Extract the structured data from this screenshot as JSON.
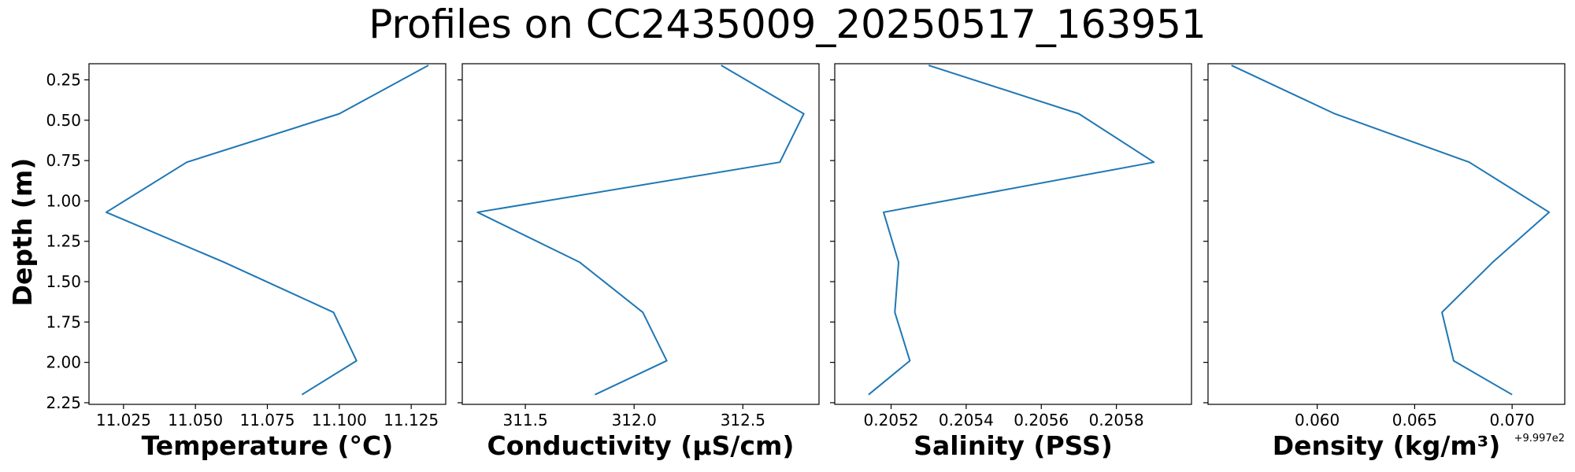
{
  "figure": {
    "title": "Profiles on CC2435009_20250517_163951",
    "ylabel": "Depth (m)"
  },
  "colors": {
    "line": "#1f77b4",
    "axis": "#000000",
    "background": "#ffffff"
  },
  "chart_data": [
    {
      "type": "line",
      "title": "",
      "xlabel": "Temperature (°C)",
      "ylabel": "Depth (m)",
      "y_inverted": true,
      "xlim": [
        11.013,
        11.137
      ],
      "ylim": [
        2.26,
        0.15
      ],
      "xticks": [
        "11.025",
        "11.050",
        "11.075",
        "11.100",
        "11.125"
      ],
      "xtick_values": [
        11.025,
        11.05,
        11.075,
        11.1,
        11.125
      ],
      "yticks": [
        "0.25",
        "0.50",
        "0.75",
        "1.00",
        "1.25",
        "1.50",
        "1.75",
        "2.00",
        "2.25"
      ],
      "ytick_values": [
        0.25,
        0.5,
        0.75,
        1.0,
        1.25,
        1.5,
        1.75,
        2.0,
        2.25
      ],
      "series": [
        {
          "x": [
            11.131,
            11.1,
            11.047,
            11.019,
            11.06,
            11.098,
            11.106,
            11.087
          ],
          "y": [
            0.16,
            0.46,
            0.76,
            1.07,
            1.38,
            1.69,
            1.99,
            2.2
          ]
        }
      ]
    },
    {
      "type": "line",
      "title": "",
      "xlabel": "Conductivity (µS/cm)",
      "y_inverted": true,
      "xlim": [
        311.21,
        312.85
      ],
      "ylim": [
        2.26,
        0.15
      ],
      "xticks": [
        "311.5",
        "312.0",
        "312.5"
      ],
      "xtick_values": [
        311.5,
        312.0,
        312.5
      ],
      "ytick_values": [
        0.25,
        0.5,
        0.75,
        1.0,
        1.25,
        1.5,
        1.75,
        2.0,
        2.25
      ],
      "series": [
        {
          "x": [
            312.4,
            312.78,
            312.67,
            311.28,
            311.75,
            312.04,
            312.15,
            311.82
          ],
          "y": [
            0.16,
            0.46,
            0.76,
            1.07,
            1.38,
            1.69,
            1.99,
            2.2
          ]
        }
      ]
    },
    {
      "type": "line",
      "title": "",
      "xlabel": "Salinity (PSS)",
      "y_inverted": true,
      "xlim": [
        0.20505,
        0.206
      ],
      "ylim": [
        2.26,
        0.15
      ],
      "xticks": [
        "0.2052",
        "0.2054",
        "0.2056",
        "0.2058"
      ],
      "xtick_values": [
        0.2052,
        0.2054,
        0.2056,
        0.2058
      ],
      "ytick_values": [
        0.25,
        0.5,
        0.75,
        1.0,
        1.25,
        1.5,
        1.75,
        2.0,
        2.25
      ],
      "series": [
        {
          "x": [
            0.2053,
            0.2057,
            0.2059,
            0.20518,
            0.20522,
            0.20521,
            0.20525,
            0.20514
          ],
          "y": [
            0.16,
            0.46,
            0.76,
            1.07,
            1.38,
            1.69,
            1.99,
            2.2
          ]
        }
      ]
    },
    {
      "type": "line",
      "title": "",
      "xlabel": "Density (kg/m³)",
      "x_offset_label": "+9.997e2",
      "y_inverted": true,
      "xlim": [
        0.0544,
        0.0727
      ],
      "ylim": [
        2.26,
        0.15
      ],
      "xticks": [
        "0.060",
        "0.065",
        "0.070"
      ],
      "xtick_values": [
        0.06,
        0.065,
        0.07
      ],
      "ytick_values": [
        0.25,
        0.5,
        0.75,
        1.0,
        1.25,
        1.5,
        1.75,
        2.0,
        2.25
      ],
      "series": [
        {
          "x": [
            0.0556,
            0.0609,
            0.0678,
            0.0719,
            0.069,
            0.0664,
            0.067,
            0.07
          ],
          "y": [
            0.16,
            0.46,
            0.76,
            1.07,
            1.38,
            1.69,
            1.99,
            2.2
          ]
        }
      ]
    }
  ]
}
